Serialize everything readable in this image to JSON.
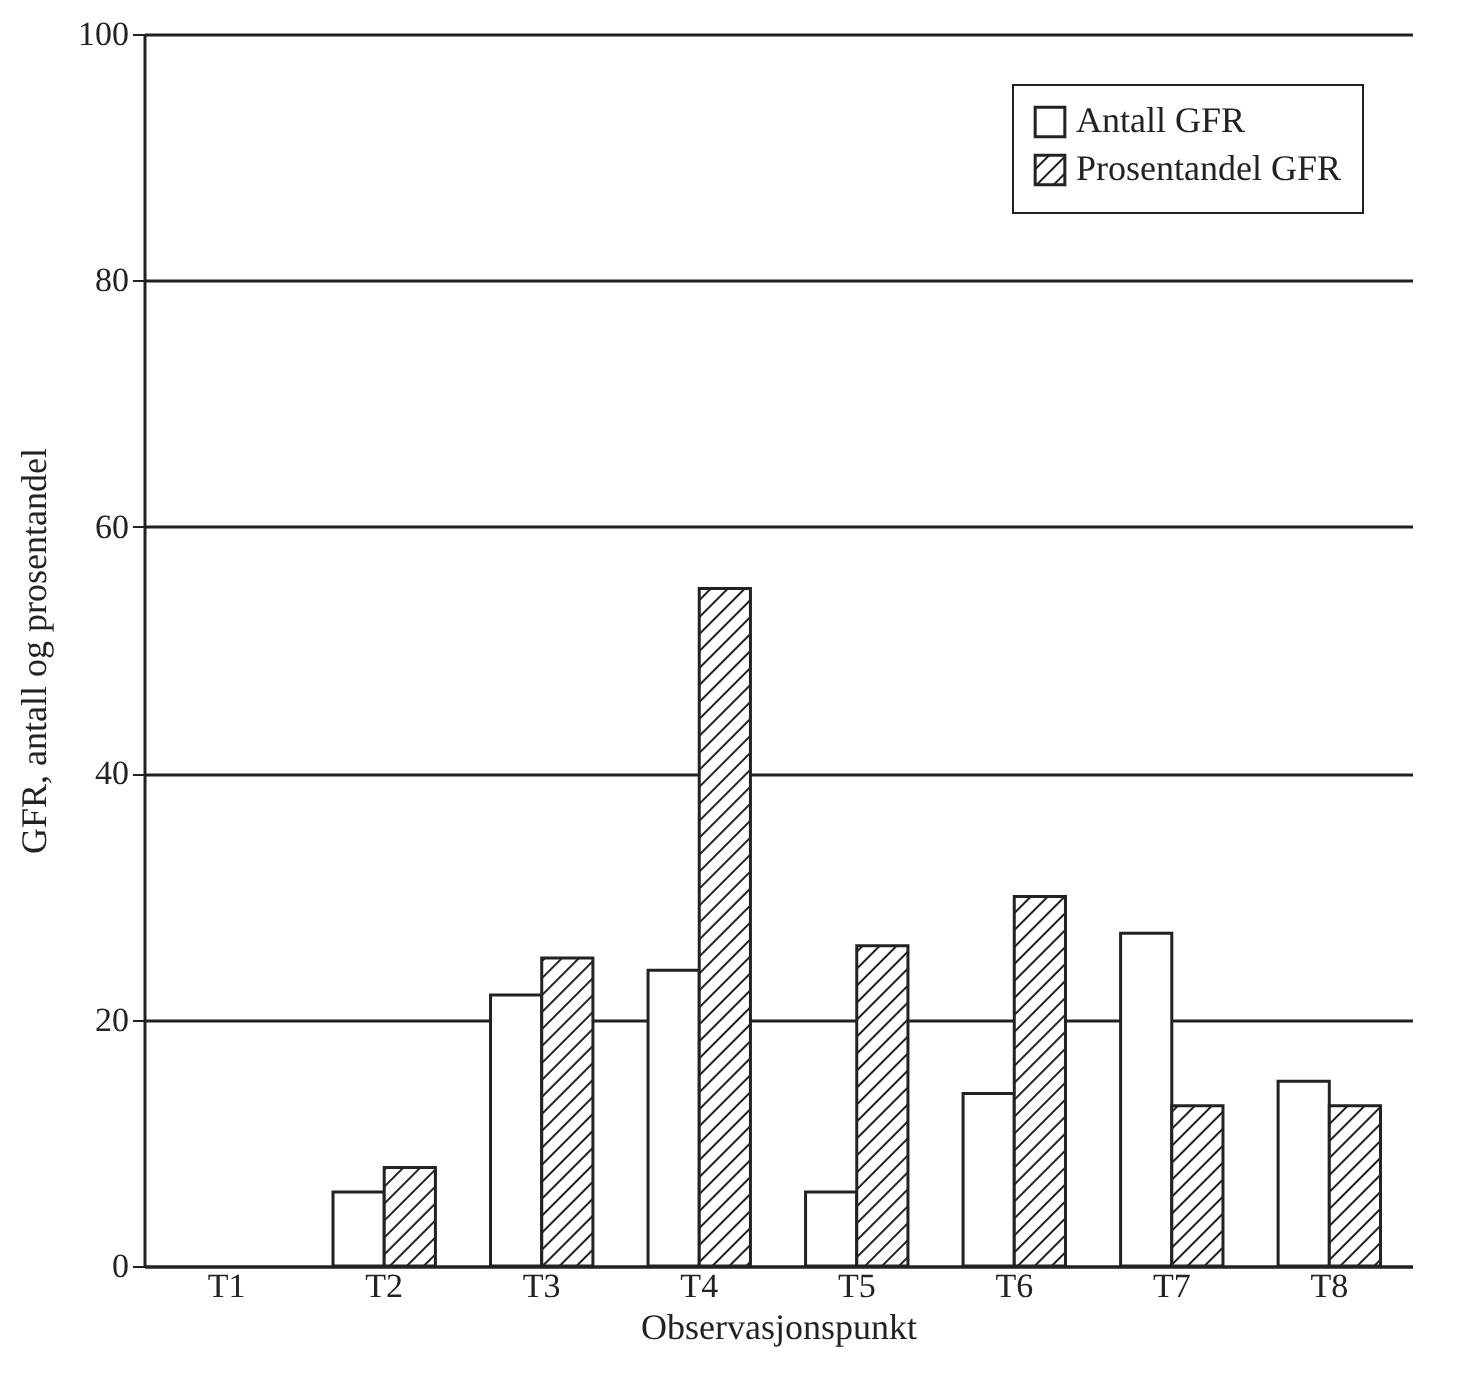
{
  "chart_data": {
    "type": "bar",
    "xlabel": "Observasjonspunkt",
    "ylabel": "GFR, antall og prosentandel",
    "categories": [
      "T1",
      "T2",
      "T3",
      "T4",
      "T5",
      "T6",
      "T7",
      "T8"
    ],
    "series": [
      {
        "name": "Antall GFR",
        "color": "#ffffff",
        "values": [
          null,
          6,
          22,
          24,
          6,
          14,
          27,
          15
        ]
      },
      {
        "name": "Prosentandel GFR",
        "color": "#222222",
        "values": [
          null,
          8,
          25,
          55,
          26,
          30,
          13,
          13
        ]
      }
    ],
    "ylim": [
      0,
      100
    ],
    "yticks": [
      0,
      20,
      40,
      60,
      80,
      100
    ],
    "grid": "y",
    "legend": "top right"
  }
}
